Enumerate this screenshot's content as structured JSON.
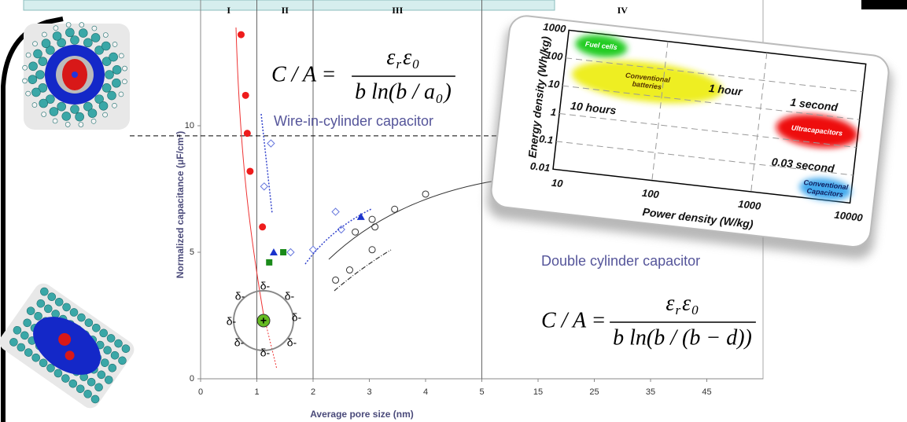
{
  "chart_data": [
    {
      "type": "scatter",
      "x_label": "Average pore size (nm)",
      "y_label": "Normalized capacitance (μF/cm²)",
      "xlim": [
        0,
        55
      ],
      "xticks": [
        0,
        1,
        2,
        3,
        4,
        5,
        15,
        25,
        35,
        45
      ],
      "x_axis": "broken",
      "ylim": [
        0,
        15
      ],
      "yticks": [
        0,
        5,
        10
      ],
      "regions": [
        {
          "label": "I",
          "from": 0,
          "to": 1
        },
        {
          "label": "II",
          "from": 1,
          "to": 2
        },
        {
          "label": "III",
          "from": 2,
          "to": 5
        },
        {
          "label": "IV",
          "from": 5,
          "to": 55
        }
      ],
      "reference_line": 9.6,
      "annotations": [
        "Wire-in-cylinder capacitor",
        "Double cylinder capacitor"
      ],
      "series": [
        {
          "marker": "circle-filled",
          "color": "#ee1c1c",
          "x": [
            0.72,
            0.8,
            0.83,
            0.88,
            1.1
          ],
          "values": [
            13.6,
            11.2,
            9.7,
            8.2,
            6.0
          ]
        },
        {
          "marker": "square",
          "color": "#1a8a1a",
          "x": [
            1.22,
            1.47
          ],
          "values": [
            4.6,
            5.0
          ]
        },
        {
          "marker": "triangle",
          "color": "#1a33cc",
          "x": [
            1.3,
            2.85
          ],
          "values": [
            5.0,
            6.4
          ]
        },
        {
          "marker": "diamond-open",
          "color": "#6677dd",
          "x": [
            1.13,
            1.25,
            1.6,
            2.0,
            2.4,
            2.5
          ],
          "values": [
            7.6,
            9.3,
            5.0,
            5.1,
            6.6,
            5.9
          ]
        },
        {
          "marker": "circle-open",
          "color": "#333333",
          "x": [
            2.4,
            2.65,
            2.75,
            3.05,
            3.1,
            3.05,
            3.45,
            4.0
          ],
          "values": [
            3.9,
            4.3,
            5.8,
            5.1,
            6.0,
            6.3,
            6.7,
            7.3
          ]
        }
      ]
    },
    {
      "type": "region",
      "x_label": "Power density (W/kg)",
      "y_label": "Energy density (Wh/kg)",
      "log_x": true,
      "log_y": true,
      "xlim": [
        10,
        10000
      ],
      "xticks": [
        10,
        100,
        1000,
        10000
      ],
      "ylim": [
        0.01,
        1000
      ],
      "yticks": [
        0.01,
        0.1,
        1,
        10,
        100,
        1000
      ],
      "grid": true,
      "regions": [
        {
          "name_lines": [
            "Fuel cells"
          ],
          "color": "#22cc22",
          "label_color": "#ffffff",
          "xrange": [
            12,
            40
          ],
          "yrange": [
            150,
            900
          ]
        },
        {
          "name_lines": [
            "Conventional",
            "batteries"
          ],
          "color": "#eeee22",
          "label_color": "#553300",
          "xrange": [
            12,
            400
          ],
          "yrange": [
            6,
            150
          ]
        },
        {
          "name_lines": [
            "Ultracapacitors"
          ],
          "color": "#ee1111",
          "label_color": "#ffffff",
          "xrange": [
            1500,
            10000
          ],
          "yrange": [
            0.7,
            10
          ]
        },
        {
          "name_lines": [
            "Conventional",
            "Capacitors"
          ],
          "color": "#44aaee",
          "label_color": "#102060",
          "xrange": [
            3000,
            10000
          ],
          "yrange": [
            0.01,
            0.06
          ]
        }
      ],
      "annotations": [
        "1 hour",
        "1 second",
        "10 hours",
        "0.03 second"
      ]
    }
  ],
  "equations": [
    {
      "lhs": "C / A =",
      "numerator": [
        {
          "base": "ε",
          "sub": "r"
        },
        {
          "base": "ε",
          "sub": "0"
        }
      ],
      "denominator": [
        {
          "base": "b ln(b / a",
          "sub": "0"
        },
        {
          "base": ")"
        }
      ]
    },
    {
      "lhs": "C / A =",
      "numerator": [
        {
          "base": "ε",
          "sub": "r"
        },
        {
          "base": "ε",
          "sub": "0"
        }
      ],
      "denominator": [
        {
          "base": "b ln(b / (b − d))"
        }
      ]
    }
  ],
  "charge_diagram": {
    "charges": [
      "δ-",
      "δ-",
      "δ-",
      "δ-",
      "δ-",
      "δ-",
      "δ-",
      "δ-"
    ],
    "center": "+"
  }
}
